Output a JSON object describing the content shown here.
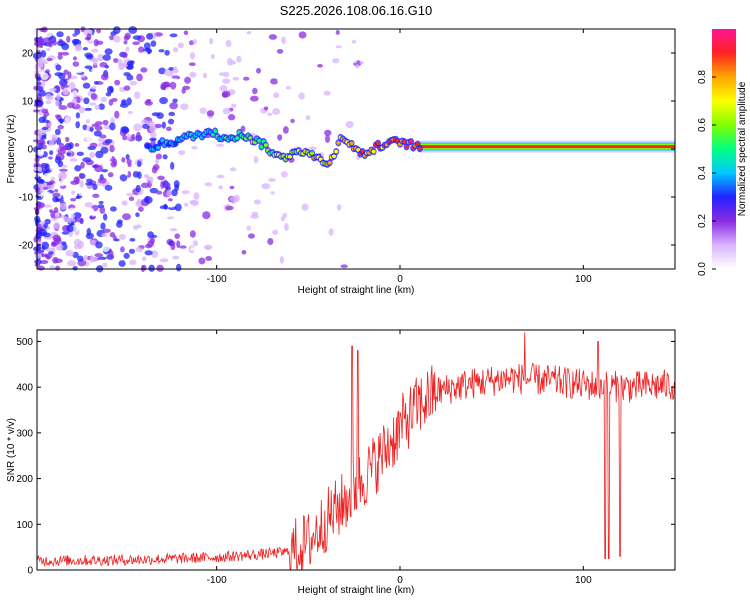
{
  "title": "S225.2026.108.06.16.G10",
  "chart_data": [
    {
      "type": "heatmap",
      "name": "spectrogram",
      "xlabel": "Height of straight line (km)",
      "ylabel": "Frequency (Hz)",
      "xlim": [
        -198,
        150
      ],
      "ylim": [
        -25,
        25
      ],
      "xticks": [
        -100,
        0,
        100
      ],
      "yticks": [
        -20,
        -10,
        0,
        10,
        20
      ],
      "colorbar": {
        "label": "Normalized spectral amplitude",
        "range": [
          0,
          1
        ],
        "ticks": [
          0.0,
          0.2,
          0.4,
          0.6,
          0.8
        ],
        "tick_labels": [
          "0.0",
          "0.2",
          "0.4",
          "0.6",
          "0.8"
        ],
        "colors": [
          "#ffffff",
          "#d9b3ff",
          "#8a2be2",
          "#2222ff",
          "#00c8ff",
          "#00ff80",
          "#80ff00",
          "#ffff00",
          "#ffa500",
          "#ff2222",
          "#ff1493"
        ]
      },
      "signal_trace": [
        {
          "x": -135,
          "f": 0.5
        },
        {
          "x": -120,
          "f": 2
        },
        {
          "x": -105,
          "f": 3.5
        },
        {
          "x": -95,
          "f": 2.5
        },
        {
          "x": -85,
          "f": 3
        },
        {
          "x": -75,
          "f": 1
        },
        {
          "x": -65,
          "f": -2
        },
        {
          "x": -55,
          "f": 0
        },
        {
          "x": -45,
          "f": -2
        },
        {
          "x": -38,
          "f": -3
        },
        {
          "x": -32,
          "f": 3
        },
        {
          "x": -25,
          "f": 0
        },
        {
          "x": -18,
          "f": -1
        },
        {
          "x": -10,
          "f": 1
        },
        {
          "x": 0,
          "f": 1.5
        },
        {
          "x": 10,
          "f": 0.5
        },
        {
          "x": 150,
          "f": 0.5
        }
      ]
    },
    {
      "type": "line",
      "name": "snr",
      "xlabel": "Height of straight line (km)",
      "ylabel": "SNR (10 * v/v)",
      "xlim": [
        -198,
        150
      ],
      "ylim": [
        0,
        525
      ],
      "xticks": [
        -100,
        0,
        100
      ],
      "yticks": [
        0,
        100,
        200,
        300,
        400,
        500
      ],
      "color": "#ee2222",
      "trend": [
        {
          "x": -198,
          "y": 20
        },
        {
          "x": -150,
          "y": 22
        },
        {
          "x": -120,
          "y": 25
        },
        {
          "x": -100,
          "y": 28
        },
        {
          "x": -80,
          "y": 33
        },
        {
          "x": -60,
          "y": 40
        },
        {
          "x": -50,
          "y": 60
        },
        {
          "x": -40,
          "y": 110
        },
        {
          "x": -30,
          "y": 150
        },
        {
          "x": -20,
          "y": 200
        },
        {
          "x": -10,
          "y": 250
        },
        {
          "x": 0,
          "y": 310
        },
        {
          "x": 10,
          "y": 360
        },
        {
          "x": 20,
          "y": 390
        },
        {
          "x": 35,
          "y": 405
        },
        {
          "x": 60,
          "y": 420
        },
        {
          "x": 80,
          "y": 415
        },
        {
          "x": 100,
          "y": 405
        },
        {
          "x": 125,
          "y": 400
        },
        {
          "x": 150,
          "y": 405
        }
      ],
      "spikes": [
        {
          "x": -26,
          "y": 490
        },
        {
          "x": -23,
          "y": 480
        },
        {
          "x": 68,
          "y": 520
        },
        {
          "x": 108,
          "y": 500
        },
        {
          "x": 112,
          "y": 25
        },
        {
          "x": 114,
          "y": 25
        },
        {
          "x": 120,
          "y": 30
        }
      ]
    }
  ]
}
